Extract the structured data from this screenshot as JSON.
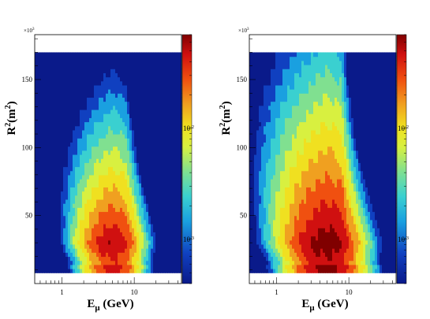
{
  "chart_data": [
    {
      "type": "heatmap",
      "style": "filled-contour",
      "xlabel": "E",
      "xlabel_sub": "μ",
      "xlabel_unit": " (GeV)",
      "ylabel": "R",
      "ylabel_sup": "2",
      "ylabel_unit": "(m",
      "ylabel_unit_sup": "2",
      "ylabel_close": ")",
      "y_multiplier": "×10",
      "y_multiplier_exp": "3",
      "x_scale": "log",
      "x_range": [
        0.42,
        45
      ],
      "y_range": [
        0,
        183
      ],
      "data_y_range": [
        8,
        170
      ],
      "x_ticks": [
        "1",
        "10"
      ],
      "y_ticks": [
        "50",
        "100",
        "150"
      ],
      "colorbar": {
        "scale": "log",
        "range": [
          0.0004,
          0.07
        ],
        "ticks": [
          "10",
          "10"
        ],
        "tick_exps": [
          "-3",
          "-2"
        ]
      },
      "peak": {
        "x": 5,
        "y": 30
      },
      "shape": "peaked"
    },
    {
      "type": "heatmap",
      "style": "filled-contour",
      "xlabel": "E",
      "xlabel_sub": "μ",
      "xlabel_unit": " (GeV)",
      "ylabel": "R",
      "ylabel_sup": "2",
      "ylabel_unit": "(m",
      "ylabel_unit_sup": "2",
      "ylabel_close": ")",
      "y_multiplier": "×10",
      "y_multiplier_exp": "3",
      "x_scale": "log",
      "x_range": [
        0.42,
        45
      ],
      "y_range": [
        0,
        183
      ],
      "data_y_range": [
        8,
        170
      ],
      "x_ticks": [
        "1",
        "10"
      ],
      "y_ticks": [
        "50",
        "100",
        "150"
      ],
      "colorbar": {
        "scale": "log",
        "range": [
          0.0004,
          0.07
        ],
        "ticks": [
          "10",
          "10"
        ],
        "tick_exps": [
          "-3",
          "-2"
        ]
      },
      "peak": {
        "x": 5,
        "y": 30
      },
      "shape": "broad"
    }
  ]
}
